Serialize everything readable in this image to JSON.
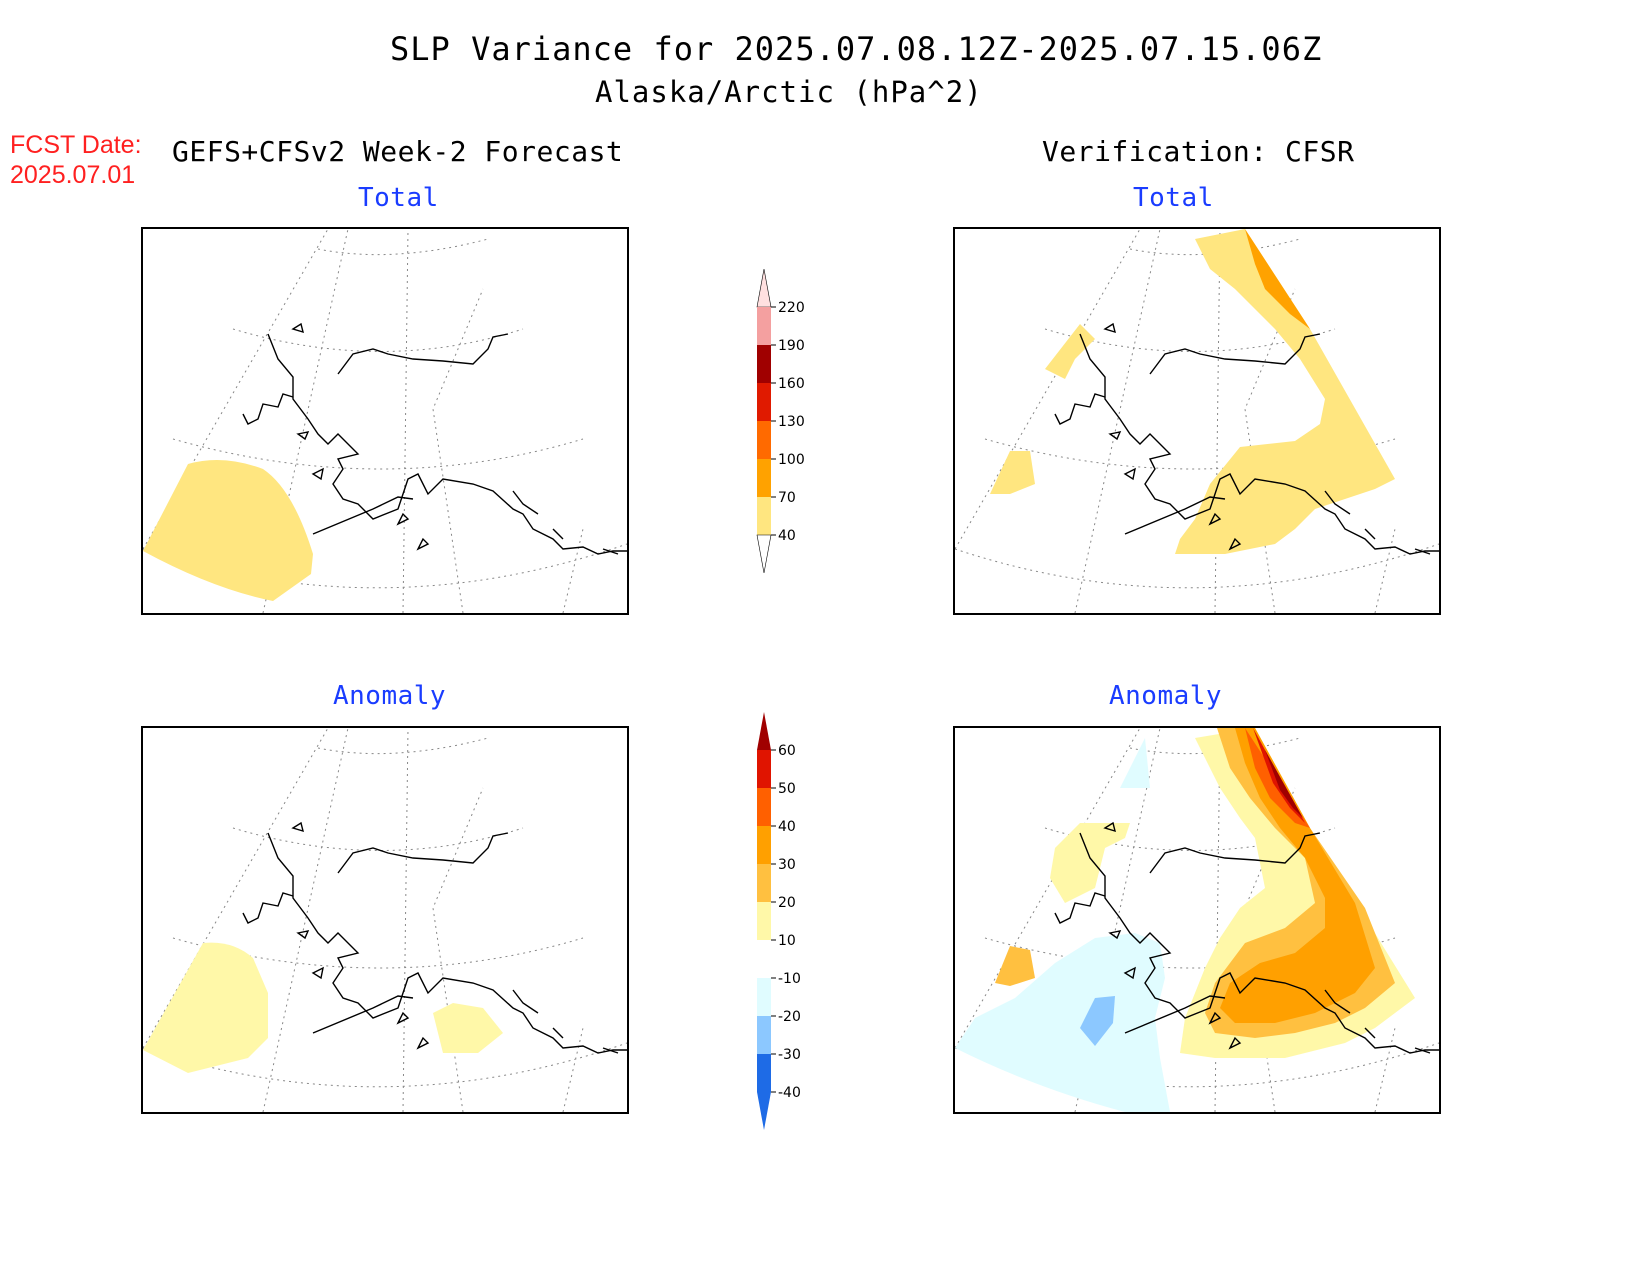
{
  "header": {
    "title": "SLP Variance for 2025.07.08.12Z-2025.07.15.06Z",
    "subtitle": "Alaska/Arctic (hPa^2)",
    "fcst_label": "FCST Date:",
    "fcst_date": "2025.07.01",
    "left_heading": "GEFS+CFSv2 Week-2 Forecast",
    "right_heading": "Verification: CFSR"
  },
  "panels": {
    "forecast_total": {
      "label": "Total"
    },
    "verif_total": {
      "label": "Total"
    },
    "forecast_anomaly": {
      "label": "Anomaly"
    },
    "verif_anomaly": {
      "label": "Anomaly"
    }
  },
  "colorbars": {
    "total": {
      "levels": [
        "40",
        "70",
        "100",
        "130",
        "160",
        "190",
        "220"
      ],
      "colors": [
        "#ffe680",
        "#ffa200",
        "#ff6a00",
        "#e01a00",
        "#a00000",
        "#f4a0a0",
        "#ffe0e0"
      ]
    },
    "anomaly": {
      "levels": [
        "-40",
        "-30",
        "-20",
        "-10",
        "10",
        "20",
        "30",
        "40",
        "50",
        "60"
      ],
      "colors": [
        "#1e6be6",
        "#1e6be6",
        "#8cc8ff",
        "#e0fcff",
        "#ffffff",
        "#fff8a8",
        "#ffc040",
        "#ffa000",
        "#ff6000",
        "#e01400",
        "#a00000"
      ]
    }
  },
  "colors": {
    "label_blue": "#1a3cff",
    "fcst_red": "#ff2020"
  }
}
